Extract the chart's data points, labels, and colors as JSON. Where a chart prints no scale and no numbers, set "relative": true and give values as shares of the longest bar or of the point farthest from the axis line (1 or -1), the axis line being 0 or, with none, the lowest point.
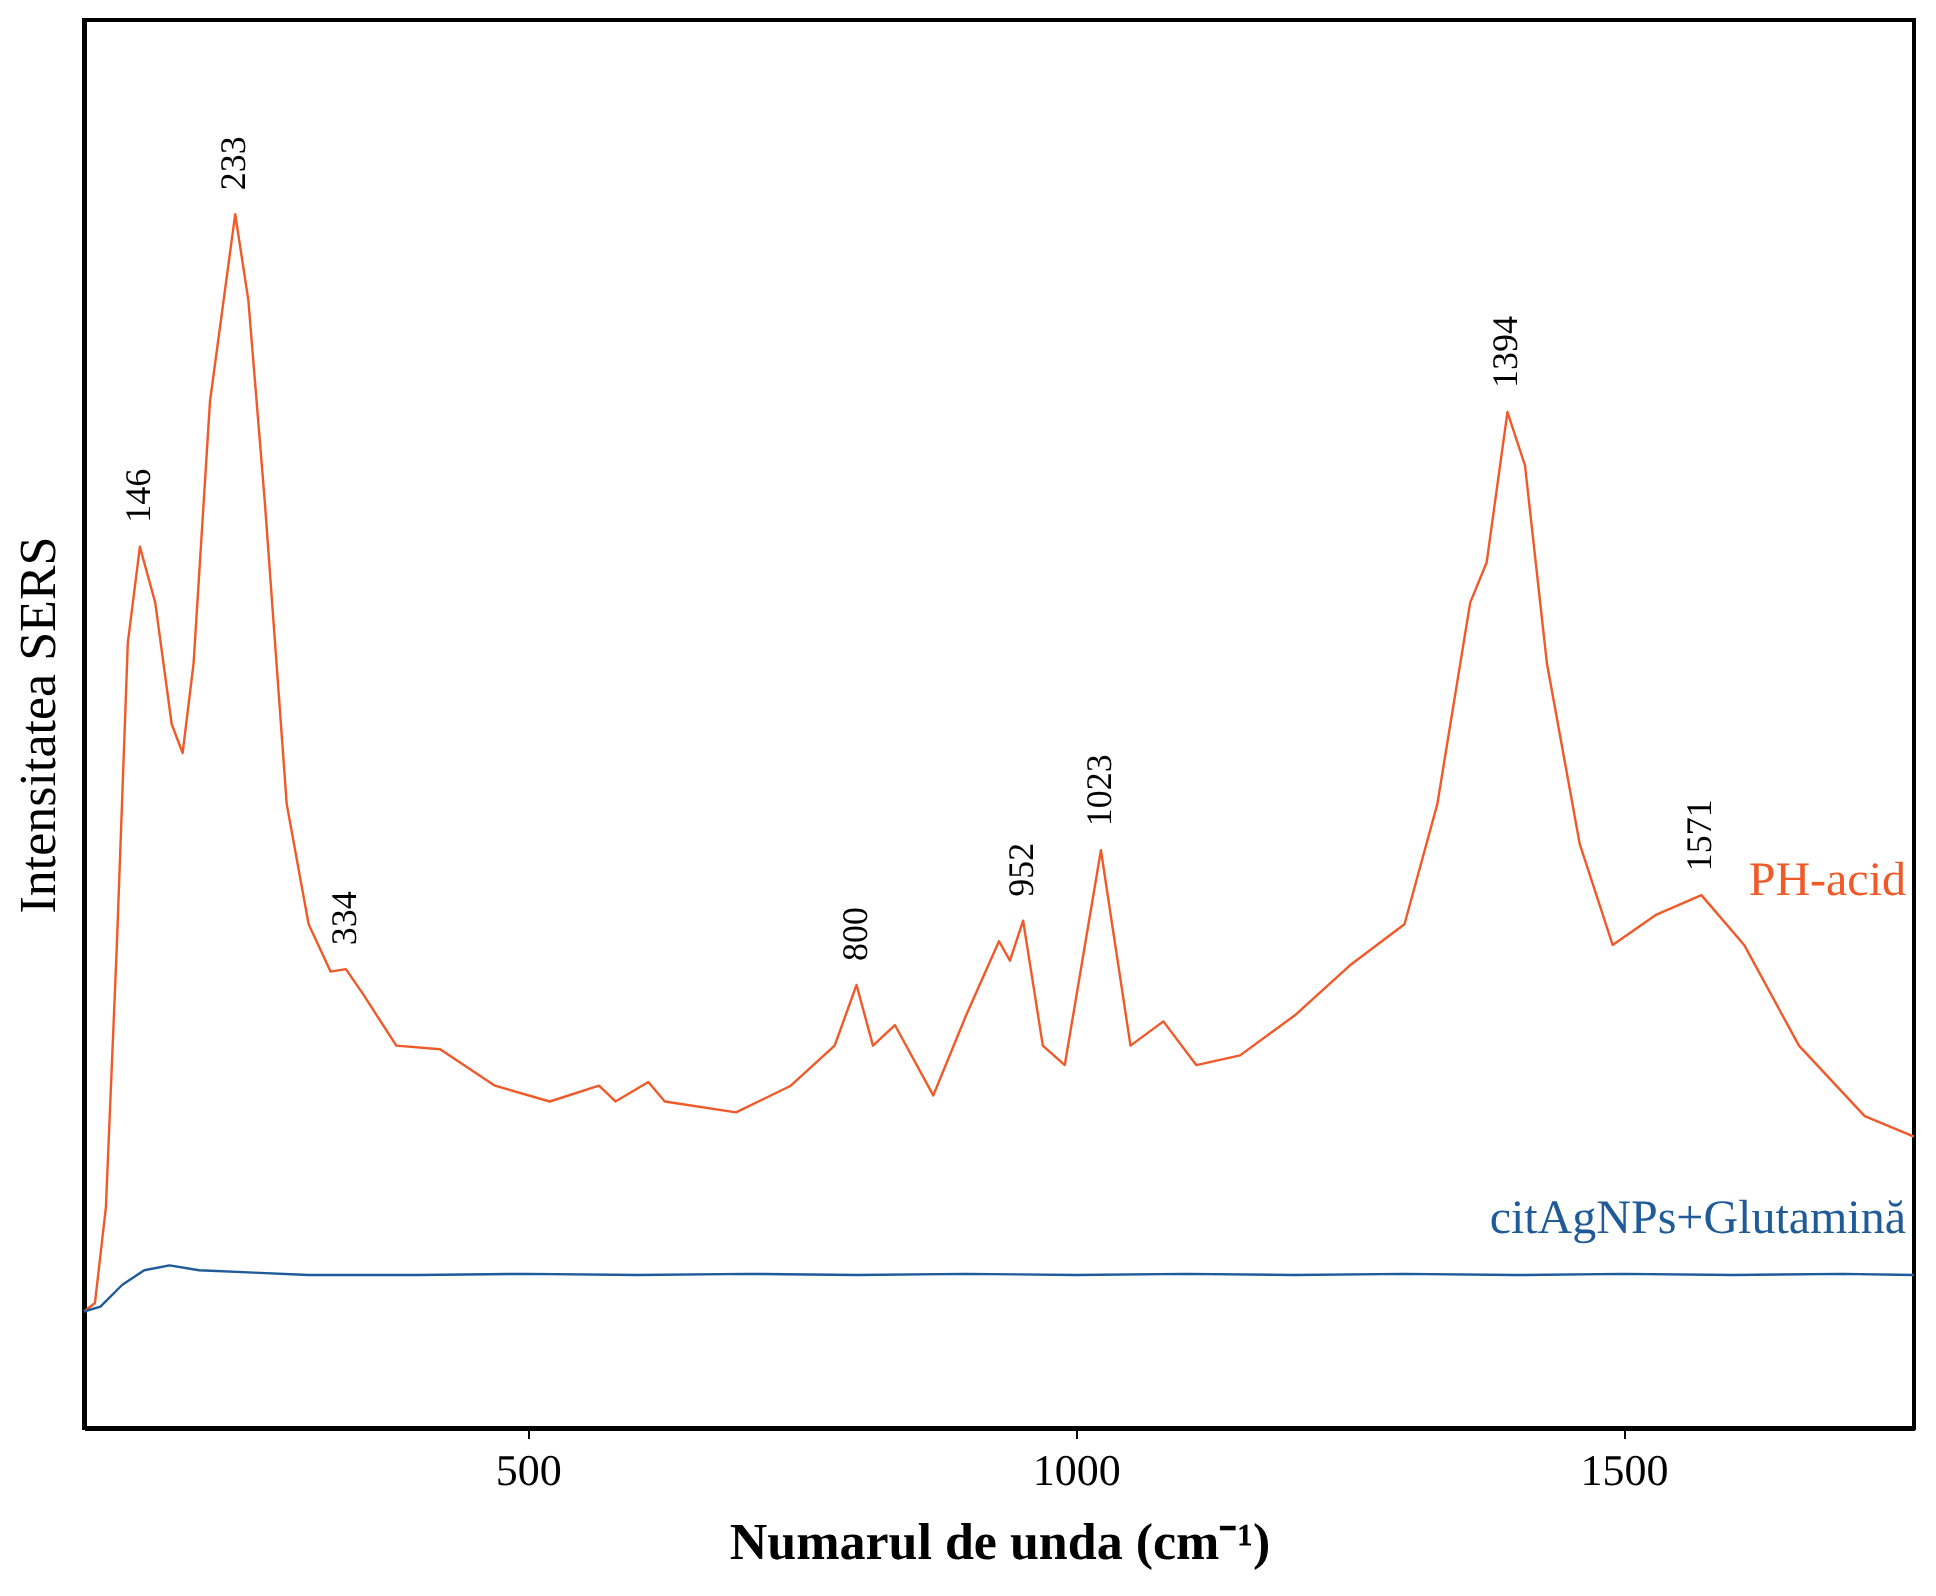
{
  "chart_data": {
    "type": "line",
    "relative": true,
    "xlabel": "Numarul de unda (cm⁻¹)",
    "ylabel": "Intensitatea SERS",
    "xlim": [
      95,
      1765
    ],
    "xticks": [
      500,
      1000,
      1500
    ],
    "series": [
      {
        "name": "PH-acid",
        "color": "#f05a28",
        "x": [
          95,
          105,
          115,
          125,
          135,
          146,
          160,
          175,
          185,
          195,
          210,
          233,
          245,
          260,
          280,
          300,
          320,
          334,
          350,
          380,
          420,
          470,
          520,
          565,
          580,
          610,
          625,
          690,
          740,
          780,
          800,
          815,
          835,
          870,
          900,
          930,
          940,
          952,
          970,
          990,
          1023,
          1050,
          1080,
          1110,
          1150,
          1200,
          1250,
          1300,
          1330,
          1360,
          1375,
          1394,
          1410,
          1430,
          1460,
          1490,
          1530,
          1571,
          1610,
          1660,
          1720,
          1765
        ],
        "values": [
          0.096,
          0.103,
          0.182,
          0.398,
          0.647,
          0.726,
          0.68,
          0.58,
          0.556,
          0.63,
          0.846,
          1.0,
          0.929,
          0.763,
          0.514,
          0.415,
          0.376,
          0.378,
          0.357,
          0.315,
          0.312,
          0.282,
          0.269,
          0.282,
          0.269,
          0.285,
          0.269,
          0.26,
          0.282,
          0.315,
          0.365,
          0.315,
          0.332,
          0.274,
          0.34,
          0.401,
          0.385,
          0.418,
          0.315,
          0.299,
          0.476,
          0.315,
          0.335,
          0.299,
          0.307,
          0.34,
          0.381,
          0.415,
          0.514,
          0.68,
          0.713,
          0.837,
          0.793,
          0.63,
          0.481,
          0.398,
          0.423,
          0.439,
          0.398,
          0.315,
          0.257,
          0.24
        ]
      },
      {
        "name": "citAgNPs+Glutamină",
        "color": "#1f5a99",
        "x": [
          95,
          110,
          130,
          150,
          173,
          200,
          250,
          300,
          400,
          500,
          600,
          700,
          800,
          900,
          1000,
          1100,
          1200,
          1300,
          1400,
          1500,
          1600,
          1700,
          1765
        ],
        "values": [
          0.096,
          0.1,
          0.118,
          0.13,
          0.134,
          0.13,
          0.128,
          0.126,
          0.126,
          0.127,
          0.126,
          0.127,
          0.126,
          0.127,
          0.126,
          0.127,
          0.126,
          0.127,
          0.126,
          0.127,
          0.126,
          0.127,
          0.126
        ]
      }
    ],
    "annotations": [
      {
        "text": "146",
        "x": 146,
        "y": 0.726
      },
      {
        "text": "233",
        "x": 233,
        "y": 1.0
      },
      {
        "text": "334",
        "x": 334,
        "y": 0.378
      },
      {
        "text": "800",
        "x": 800,
        "y": 0.365
      },
      {
        "text": "952",
        "x": 952,
        "y": 0.418
      },
      {
        "text": "1023",
        "x": 1023,
        "y": 0.476
      },
      {
        "text": "1394",
        "x": 1394,
        "y": 0.837
      },
      {
        "text": "1571",
        "x": 1571,
        "y": 0.439
      }
    ]
  }
}
